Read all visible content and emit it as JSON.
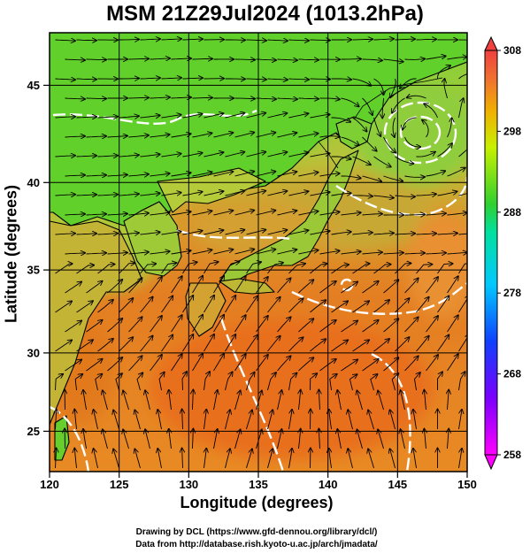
{
  "title": "MSM 21Z29Jul2024 (1013.2hPa)",
  "x_axis": {
    "label": "Longitude (degrees)",
    "ticks": [
      "120",
      "125",
      "130",
      "135",
      "140",
      "145",
      "150"
    ],
    "range": [
      120,
      150
    ]
  },
  "y_axis": {
    "label": "Latitude  (degrees)",
    "ticks": [
      "25",
      "30",
      "35",
      "40",
      "45"
    ],
    "range": [
      22.4,
      47.6
    ]
  },
  "colorbar": {
    "ticks": [
      "258",
      "268",
      "278",
      "288",
      "298",
      "308"
    ],
    "range": [
      258,
      308
    ]
  },
  "credits": [
    "Drawing by DCL (https://www.gfd-dennou.org/library/dcl/)",
    "Data from http://database.rish.kyoto-u.ac.jp/arch/jmadata/"
  ],
  "colors": {
    "warm_sea": "#e67d22",
    "land_green": "#69c92b",
    "low_center": "#8fcd3c"
  }
}
